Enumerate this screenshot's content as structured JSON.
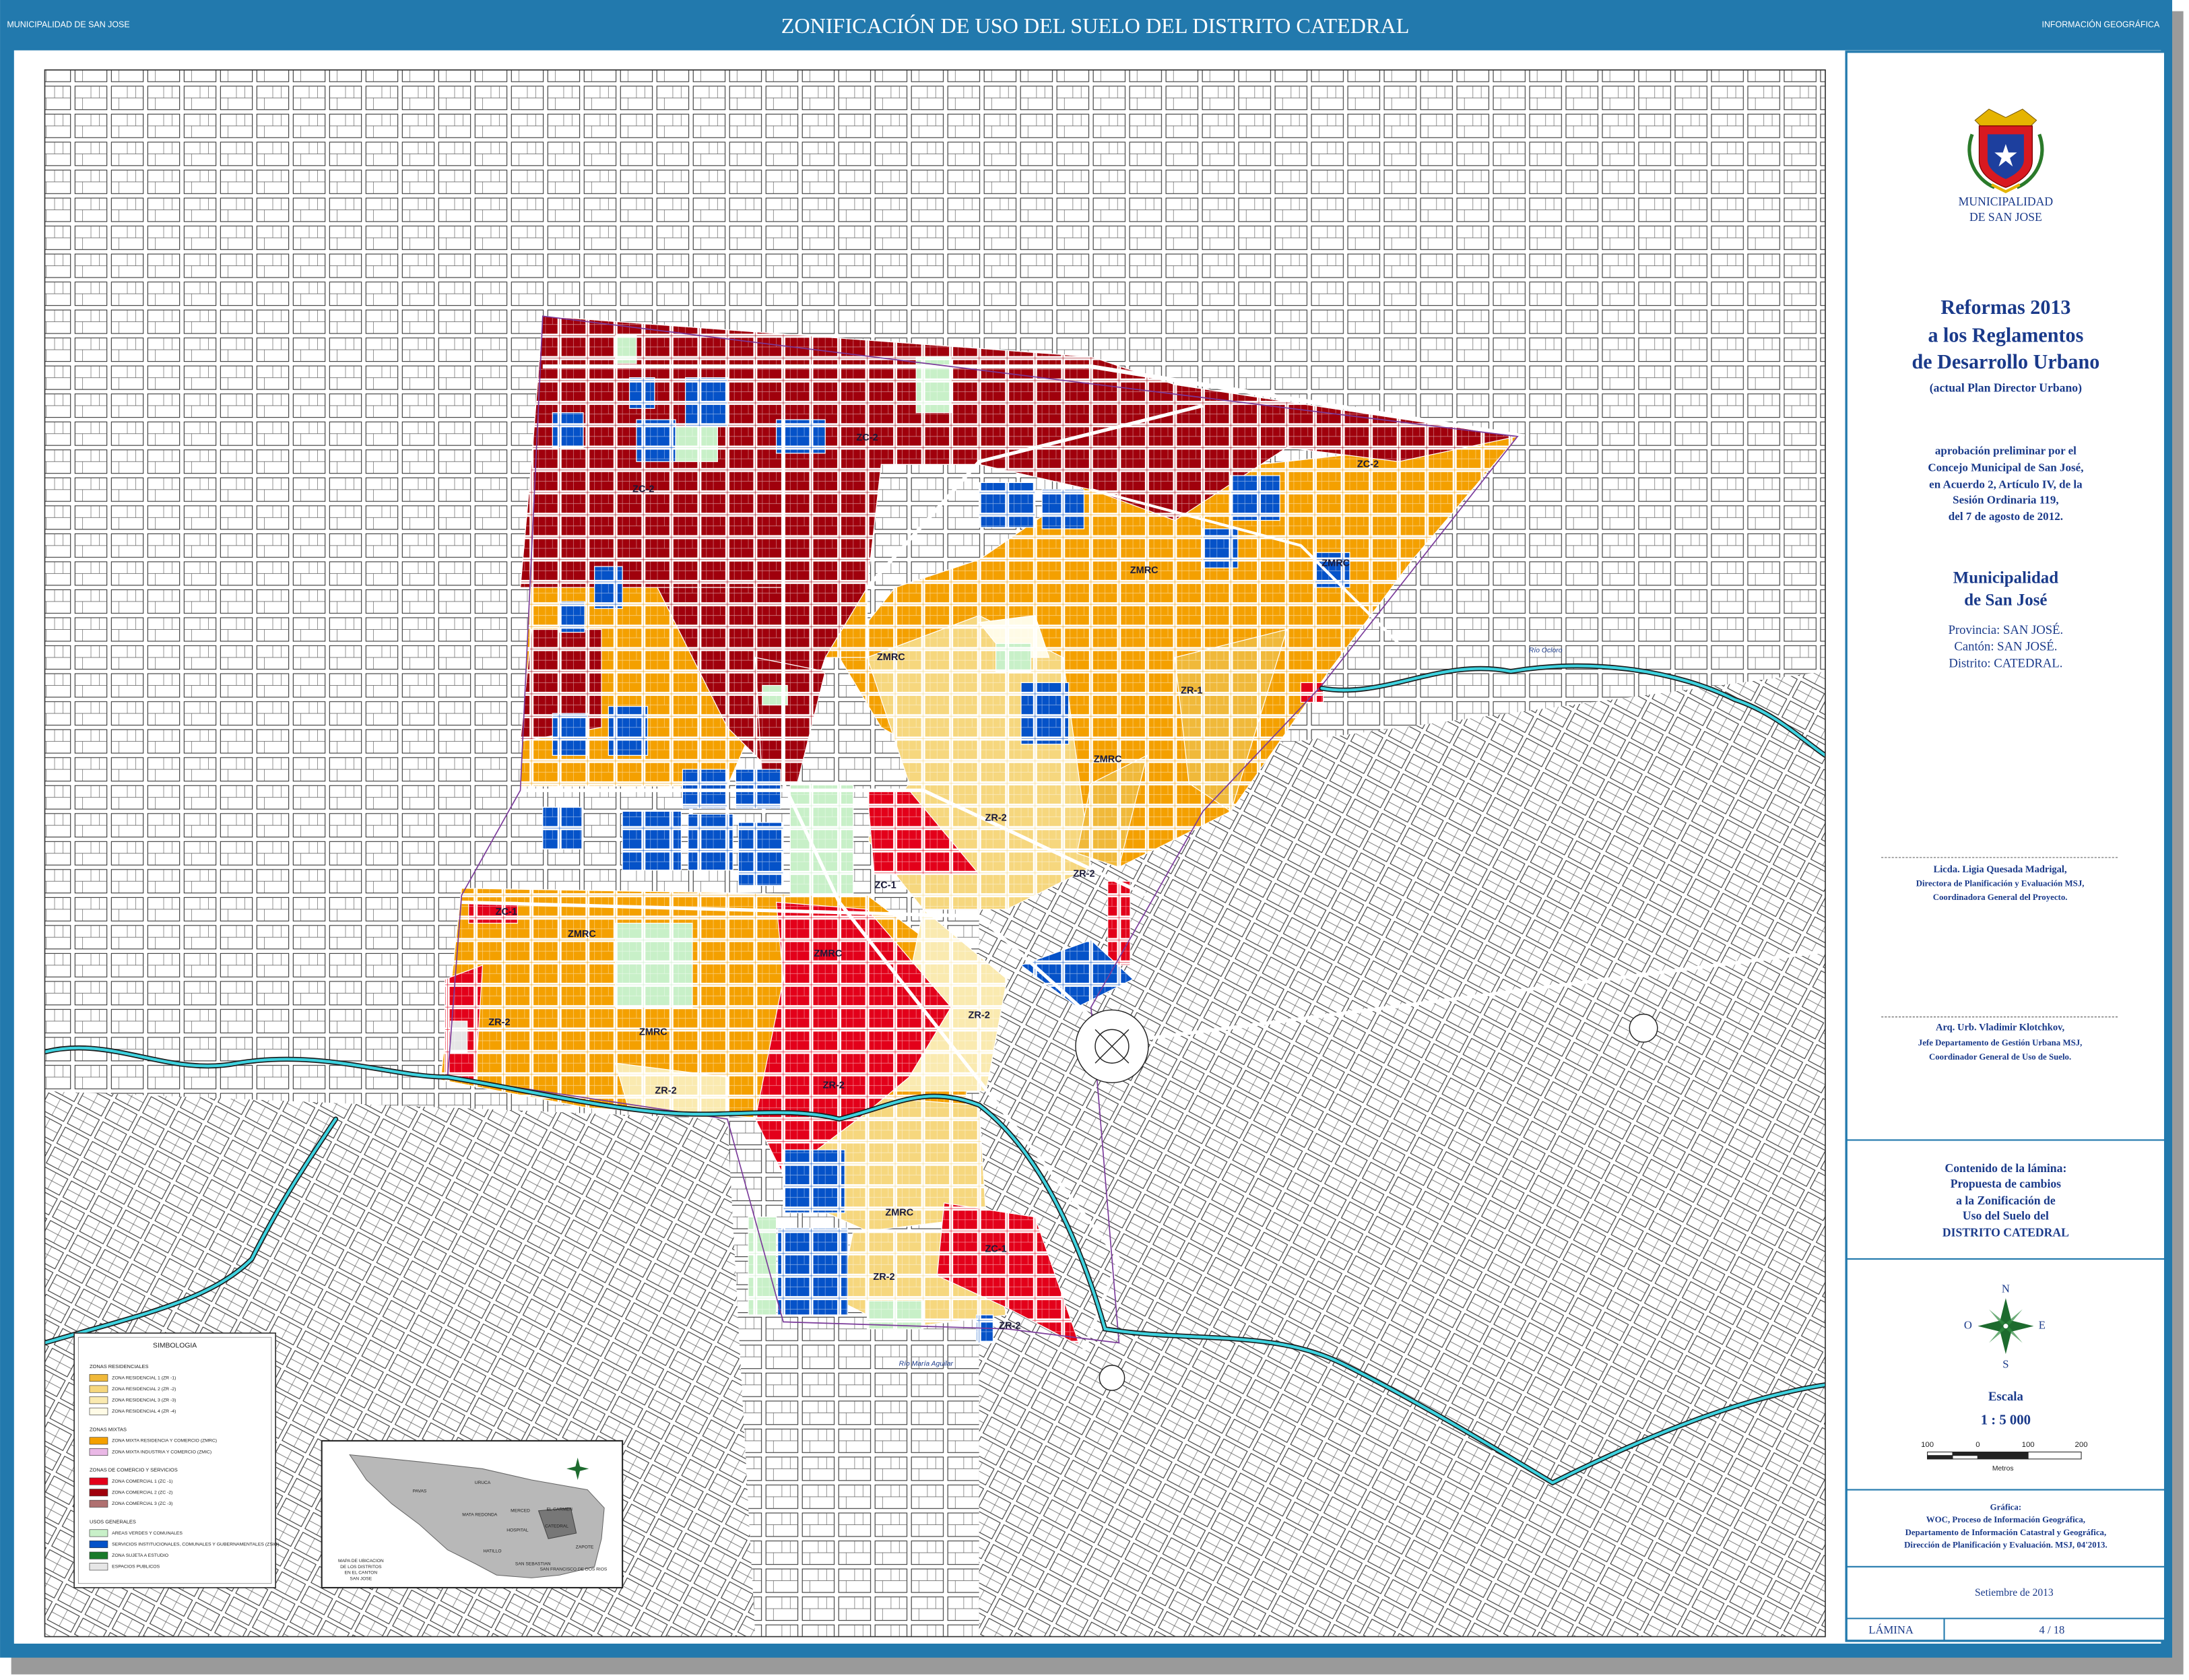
{
  "header": {
    "left": "MUNICIPALIDAD DE SAN JOSE",
    "title": "ZONIFICACIÓN DE USO DEL SUELO DEL DISTRITO CATEDRAL",
    "right": "INFORMACIÓN GEOGRÁFICA"
  },
  "sidebar": {
    "logo_text": [
      "MUNICIPALIDAD",
      "DE SAN JOSE"
    ],
    "reform_title": [
      "Reformas 2013",
      "a los Reglamentos",
      "de Desarrollo Urbano"
    ],
    "reform_subtitle": "(actual Plan Director Urbano)",
    "approval": [
      "aprobación preliminar por el",
      "Concejo Municipal de San José,",
      "en Acuerdo 2, Artículo IV, de la",
      "Sesión Ordinaria 119,",
      "del 7 de agosto de 2012."
    ],
    "municipality": [
      "Municipalidad",
      "de San José"
    ],
    "location": [
      "Provincia:  SAN JOSÉ.",
      "Cantón:  SAN JOSÉ.",
      "Distrito:  CATEDRAL."
    ],
    "signatory_1": [
      "Licda. Ligia Quesada Madrigal,",
      "Directora de Planificación y Evaluación MSJ,",
      "Coordinadora General del Proyecto."
    ],
    "signatory_2": [
      "Arq. Urb. Vladimir Klotchkov,",
      "Jefe Departamento de Gestión Urbana MSJ,",
      "Coordinador General de Uso de Suelo."
    ],
    "contents": [
      "Contenido de la lámina:",
      "Propuesta de cambios",
      "a la Zonificación de",
      "Uso del Suelo del",
      "DISTRITO CATEDRAL"
    ],
    "compass": {
      "n": "N",
      "s": "S",
      "e": "E",
      "o": "O"
    },
    "scale_title": "Escala",
    "scale": "1 : 5 000",
    "scale_ticks": [
      "100",
      "0",
      "100",
      "200"
    ],
    "scale_unit": "Metros",
    "credits": [
      "Gráfica:",
      "WOC, Proceso de Información Geográfica,",
      "Departamento de Información Catastral y Geográfica,",
      "Dirección de Planificación y Evaluación. MSJ, 04'2013."
    ],
    "date": "Setiembre de 2013",
    "sheet_label": "LÁMINA",
    "sheet_number": "4  /  18"
  },
  "legend": {
    "title": "SIMBOLOGIA",
    "groups": [
      {
        "name": "ZONAS RESIDENCIALES",
        "items": [
          "ZONA RESIDENCIAL 1  (ZR -1)",
          "ZONA RESIDENCIAL 2  (ZR -2)",
          "ZONA RESIDENCIAL 3  (ZR -3)",
          "ZONA RESIDENCIAL 4  (ZR -4)"
        ]
      },
      {
        "name": "ZONAS MIXTAS",
        "items": [
          "ZONA MIXTA RESIDENCIA Y COMERCIO  (ZMRC)",
          "ZONA MIXTA INDUSTRIA Y COMERCIO  (ZMIC)"
        ]
      },
      {
        "name": "ZONAS DE COMERCIO Y SERVICIOS",
        "items": [
          "ZONA COMERCIAL 1  (ZC -1)",
          "ZONA COMERCIAL 2  (ZC -2)",
          "ZONA COMERCIAL 3  (ZC -3)"
        ]
      },
      {
        "name": "USOS GENERALES",
        "items": [
          "AREAS VERDES Y COMUNALES",
          "SERVICIOS INSTITUCIONALES, COMUNALES Y GUBERNAMENTALES (ZSIG)",
          "ZONA SUJETA A ESTUDIO",
          "ESPACIOS PUBLICOS"
        ]
      }
    ]
  },
  "inset": {
    "districts": [
      "PAVAS",
      "URUCA",
      "MATA REDONDA",
      "MERCED",
      "EL CARMEN",
      "CATEDRAL",
      "HOSPITAL",
      "ZAPOTE",
      "HATILLO",
      "SAN SEBASTIAN",
      "SAN FRANCISCO DE DOS RIOS"
    ],
    "caption": [
      "MAPA DE UBICACION",
      "DE LOS DISTRITOS",
      "EN EL CANTON",
      "SAN JOSE"
    ]
  },
  "map_labels": [
    "ZC-2",
    "ZC-2",
    "ZC-2",
    "ZMRC",
    "ZMRC",
    "ZMRC",
    "ZR-1",
    "ZMRC",
    "ZR-2",
    "ZR-2",
    "ZC-1",
    "ZC-1",
    "ZMRC",
    "ZMRC",
    "ZR-2",
    "ZR-2",
    "ZMRC",
    "ZR-2",
    "ZR-2",
    "ZMRC",
    "ZC-1",
    "ZR-2",
    "ZR-2",
    "Río María Aguilar",
    "Río Ocloro"
  ]
}
